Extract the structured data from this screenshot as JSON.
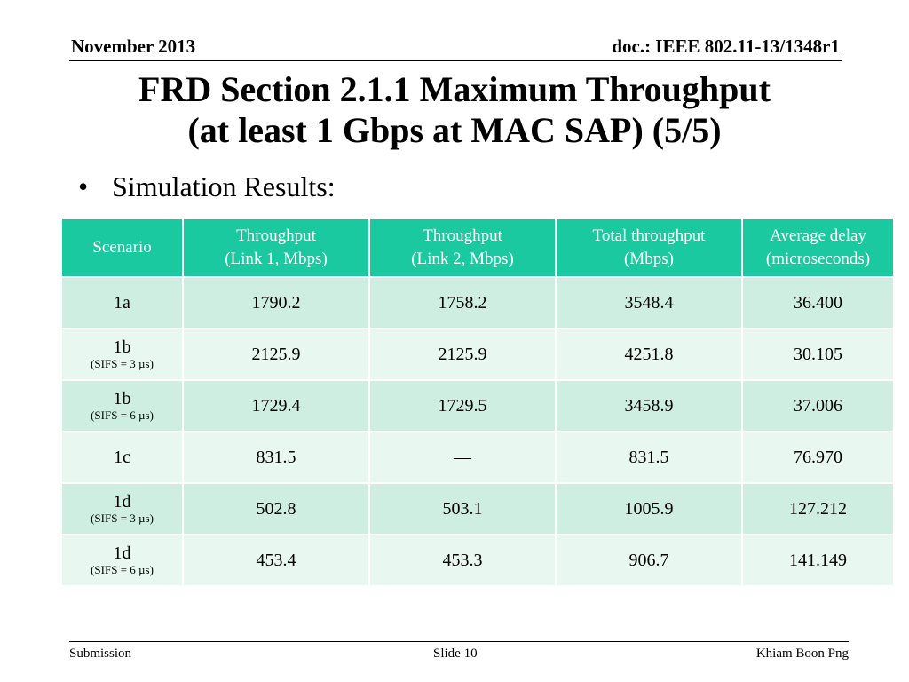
{
  "header": {
    "date": "November 2013",
    "doc": "doc.: IEEE 802.11-13/1348r1"
  },
  "title": {
    "line1": "FRD Section 2.1.1 Maximum Throughput",
    "line2": "(at least 1 Gbps at MAC SAP) (5/5)"
  },
  "bullet": {
    "symbol": "•",
    "text": "Simulation Results:"
  },
  "table": {
    "columns": [
      {
        "line1": "Scenario",
        "line2": ""
      },
      {
        "line1": "Throughput",
        "line2": "(Link 1, Mbps)"
      },
      {
        "line1": "Throughput",
        "line2": "(Link 2, Mbps)"
      },
      {
        "line1": "Total throughput",
        "line2": "(Mbps)"
      },
      {
        "line1": "Average delay",
        "line2": "(microseconds)"
      }
    ],
    "rows": [
      {
        "scenario": "1a",
        "note": "",
        "link1": "1790.2",
        "link2": "1758.2",
        "total": "3548.4",
        "delay": "36.400"
      },
      {
        "scenario": "1b",
        "note": "(SIFS = 3 µs)",
        "link1": "2125.9",
        "link2": "2125.9",
        "total": "4251.8",
        "delay": "30.105"
      },
      {
        "scenario": "1b",
        "note": "(SIFS = 6 µs)",
        "link1": "1729.4",
        "link2": "1729.5",
        "total": "3458.9",
        "delay": "37.006"
      },
      {
        "scenario": "1c",
        "note": "",
        "link1": "831.5",
        "link2": "—",
        "total": "831.5",
        "delay": "76.970"
      },
      {
        "scenario": "1d",
        "note": "(SIFS = 3 µs)",
        "link1": "502.8",
        "link2": "503.1",
        "total": "1005.9",
        "delay": "127.212"
      },
      {
        "scenario": "1d",
        "note": "(SIFS = 6 µs)",
        "link1": "453.4",
        "link2": "453.3",
        "total": "906.7",
        "delay": "141.149"
      }
    ]
  },
  "footer": {
    "left": "Submission",
    "center": "Slide 10",
    "right": "Khiam Boon Png"
  },
  "colors": {
    "header_bg": "#1ac9a0",
    "row_dark": "#cfeee2",
    "row_light": "#e8f7f0"
  }
}
